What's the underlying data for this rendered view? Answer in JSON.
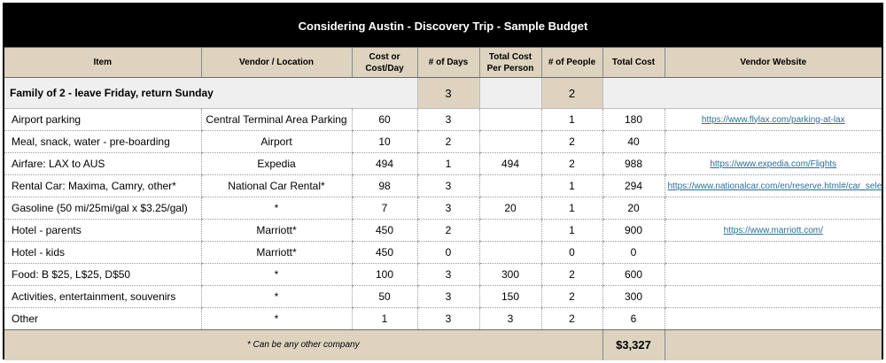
{
  "title": "Considering Austin - Discovery Trip - Sample Budget",
  "headers": {
    "item": "Item",
    "vendor": "Vendor / Location",
    "cost": "Cost or Cost/Day",
    "days": "# of Days",
    "per_person": "Total Cost Per Person",
    "people": "# of People",
    "total": "Total Cost",
    "website": "Vendor Website"
  },
  "group": {
    "label": "Family of 2 - leave Friday, return Sunday",
    "days": "3",
    "people": "2"
  },
  "rows": [
    {
      "item": "Airport parking",
      "vendor": "Central Terminal Area Parking",
      "cost": "60",
      "days": "3",
      "per_person": "",
      "people": "1",
      "total": "180",
      "website": "https://www.flylax.com/parking-at-lax"
    },
    {
      "item": "Meal, snack, water - pre-boarding",
      "vendor": "Airport",
      "cost": "10",
      "days": "2",
      "per_person": "",
      "people": "2",
      "total": "40",
      "website": ""
    },
    {
      "item": "Airfare: LAX to AUS",
      "vendor": "Expedia",
      "cost": "494",
      "days": "1",
      "per_person": "494",
      "people": "2",
      "total": "988",
      "website": "https://www.expedia.com/Flights"
    },
    {
      "item": "Rental Car: Maxima, Camry, other*",
      "vendor": "National Car Rental*",
      "cost": "98",
      "days": "3",
      "per_person": "",
      "people": "1",
      "total": "294",
      "website": "https://www.nationalcar.com/en/reserve.html#/car_select"
    },
    {
      "item": "Gasoline (50 mi/25mi/gal x $3.25/gal)",
      "vendor": "*",
      "cost": "7",
      "days": "3",
      "per_person": "20",
      "people": "1",
      "total": "20",
      "website": ""
    },
    {
      "item": "Hotel - parents",
      "vendor": "Marriott*",
      "cost": "450",
      "days": "2",
      "per_person": "",
      "people": "1",
      "total": "900",
      "website": "https://www.marriott.com/"
    },
    {
      "item": "Hotel - kids",
      "vendor": "Marriott*",
      "cost": "450",
      "days": "0",
      "per_person": "",
      "people": "0",
      "total": "0",
      "website": ""
    },
    {
      "item": "Food: B $25, L$25, D$50",
      "vendor": "*",
      "cost": "100",
      "days": "3",
      "per_person": "300",
      "people": "2",
      "total": "600",
      "website": ""
    },
    {
      "item": "Activities, entertainment, souvenirs",
      "vendor": "*",
      "cost": "50",
      "days": "3",
      "per_person": "150",
      "people": "2",
      "total": "300",
      "website": ""
    },
    {
      "item": "Other",
      "vendor": "*",
      "cost": "1",
      "days": "3",
      "per_person": "3",
      "people": "2",
      "total": "6",
      "website": ""
    }
  ],
  "footer": {
    "note": "* Can be any other company",
    "grand_total": "$3,327"
  }
}
